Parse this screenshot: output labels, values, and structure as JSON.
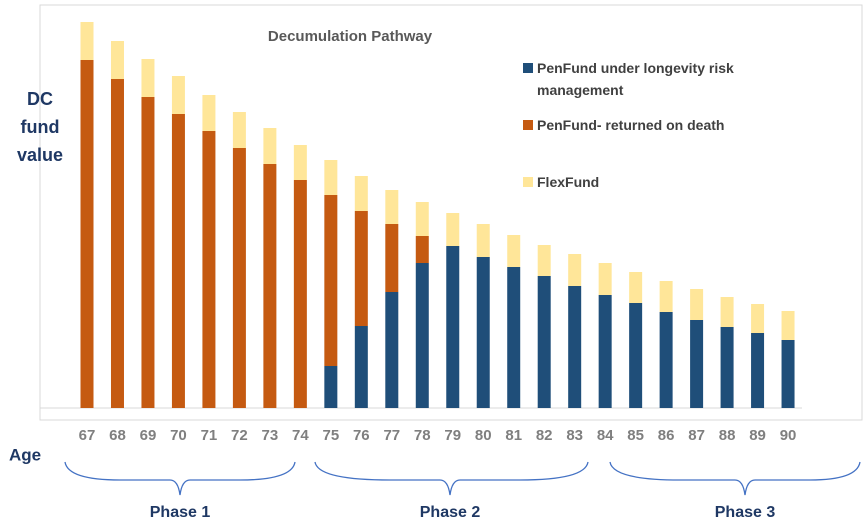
{
  "chart_data": {
    "type": "stacked_bar",
    "title": "Decumulation Pathway",
    "y_label": [
      "DC",
      "fund",
      "value"
    ],
    "x_label": "Age",
    "categories": [
      "67",
      "68",
      "69",
      "70",
      "71",
      "72",
      "73",
      "74",
      "75",
      "76",
      "77",
      "78",
      "79",
      "80",
      "81",
      "82",
      "83",
      "84",
      "85",
      "86",
      "87",
      "88",
      "89",
      "90"
    ],
    "series": [
      {
        "name": "PenFund under longevity risk management",
        "color": "#1f4e79",
        "values": [
          0,
          0,
          0,
          0,
          0,
          0,
          0,
          0,
          42,
          82,
          116,
          145,
          162,
          151,
          141,
          132,
          122,
          113,
          105,
          96,
          88,
          81,
          75,
          68
        ]
      },
      {
        "name": "PenFund- returned on death",
        "color": "#c55a11",
        "values": [
          348,
          329,
          311,
          294,
          277,
          260,
          244,
          228,
          171,
          115,
          68,
          27,
          0,
          0,
          0,
          0,
          0,
          0,
          0,
          0,
          0,
          0,
          0,
          0
        ]
      },
      {
        "name": "FlexFund",
        "color": "#ffe699",
        "values": [
          38,
          38,
          38,
          38,
          36,
          36,
          36,
          35,
          35,
          35,
          34,
          34,
          33,
          33,
          32,
          31,
          32,
          32,
          31,
          31,
          31,
          30,
          29,
          29
        ]
      }
    ],
    "phases": [
      "Phase 1",
      "Phase 2",
      "Phase 3"
    ]
  }
}
